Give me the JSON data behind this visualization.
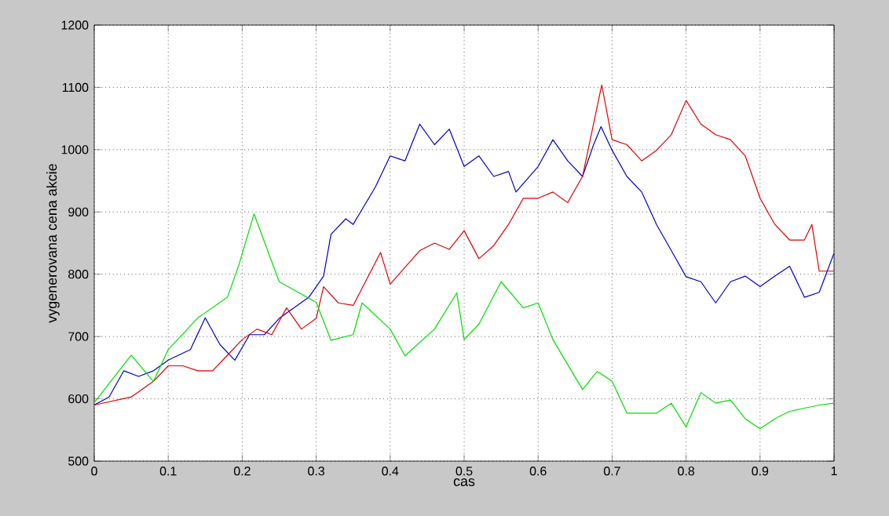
{
  "chart_data": {
    "type": "line",
    "xlabel": "cas",
    "ylabel": "vygenerovana cena akcie",
    "xlim": [
      0,
      1
    ],
    "ylim": [
      500,
      1200
    ],
    "xticks": [
      0,
      0.1,
      0.2,
      0.3,
      0.4,
      0.5,
      0.6,
      0.7,
      0.8,
      0.9,
      1
    ],
    "yticks": [
      500,
      600,
      700,
      800,
      900,
      1000,
      1100,
      1200
    ],
    "grid": true,
    "series": [
      {
        "color": "#0000cc",
        "x": [
          0,
          0.02,
          0.04,
          0.06,
          0.08,
          0.1,
          0.13,
          0.15,
          0.17,
          0.19,
          0.21,
          0.23,
          0.25,
          0.27,
          0.29,
          0.31,
          0.32,
          0.34,
          0.35,
          0.36,
          0.38,
          0.4,
          0.42,
          0.44,
          0.46,
          0.48,
          0.5,
          0.52,
          0.54,
          0.56,
          0.57,
          0.6,
          0.62,
          0.64,
          0.66,
          0.675,
          0.685,
          0.7,
          0.72,
          0.74,
          0.76,
          0.78,
          0.8,
          0.82,
          0.84,
          0.86,
          0.88,
          0.9,
          0.92,
          0.94,
          0.96,
          0.98,
          1
        ],
        "values": [
          590,
          603,
          645,
          636,
          645,
          662,
          679,
          730,
          687,
          662,
          703,
          703,
          729,
          746,
          763,
          797,
          864,
          889,
          880,
          900,
          940,
          990,
          982,
          1041,
          1008,
          1033,
          973,
          990,
          957,
          965,
          932,
          973,
          1016,
          982,
          957,
          1008,
          1037,
          999,
          957,
          932,
          880,
          838,
          796,
          788,
          754,
          788,
          797,
          780,
          797,
          813,
          763,
          771,
          834
        ]
      },
      {
        "color": "#dd0000",
        "x": [
          0,
          0.05,
          0.08,
          0.1,
          0.12,
          0.14,
          0.16,
          0.18,
          0.2,
          0.22,
          0.24,
          0.26,
          0.28,
          0.3,
          0.31,
          0.33,
          0.35,
          0.387,
          0.4,
          0.44,
          0.46,
          0.48,
          0.5,
          0.52,
          0.54,
          0.56,
          0.58,
          0.6,
          0.62,
          0.64,
          0.66,
          0.686,
          0.7,
          0.72,
          0.74,
          0.76,
          0.78,
          0.8,
          0.82,
          0.84,
          0.86,
          0.88,
          0.9,
          0.92,
          0.94,
          0.96,
          0.97,
          0.98,
          1
        ],
        "values": [
          590,
          603,
          628,
          653,
          653,
          645,
          645,
          670,
          695,
          712,
          703,
          746,
          712,
          729,
          780,
          754,
          750,
          835,
          784,
          838,
          850,
          840,
          870,
          825,
          846,
          880,
          922,
          922,
          932,
          915,
          957,
          1104,
          1016,
          1008,
          982,
          999,
          1024,
          1079,
          1041,
          1024,
          1016,
          990,
          922,
          880,
          855,
          855,
          880,
          805,
          805
        ]
      },
      {
        "color": "#00dd00",
        "x": [
          0,
          0.05,
          0.08,
          0.1,
          0.14,
          0.18,
          0.195,
          0.216,
          0.25,
          0.3,
          0.32,
          0.35,
          0.362,
          0.4,
          0.42,
          0.46,
          0.49,
          0.5,
          0.52,
          0.55,
          0.58,
          0.6,
          0.62,
          0.66,
          0.68,
          0.7,
          0.72,
          0.76,
          0.78,
          0.8,
          0.82,
          0.84,
          0.86,
          0.88,
          0.9,
          0.92,
          0.94,
          0.96,
          0.98,
          1
        ],
        "values": [
          594,
          670,
          628,
          679,
          730,
          763,
          813,
          897,
          788,
          755,
          694,
          703,
          754,
          712,
          669,
          712,
          770,
          695,
          720,
          788,
          746,
          754,
          695,
          615,
          644,
          628,
          577,
          577,
          593,
          555,
          610,
          593,
          598,
          568,
          552,
          568,
          580,
          585,
          590,
          593
        ]
      }
    ]
  }
}
